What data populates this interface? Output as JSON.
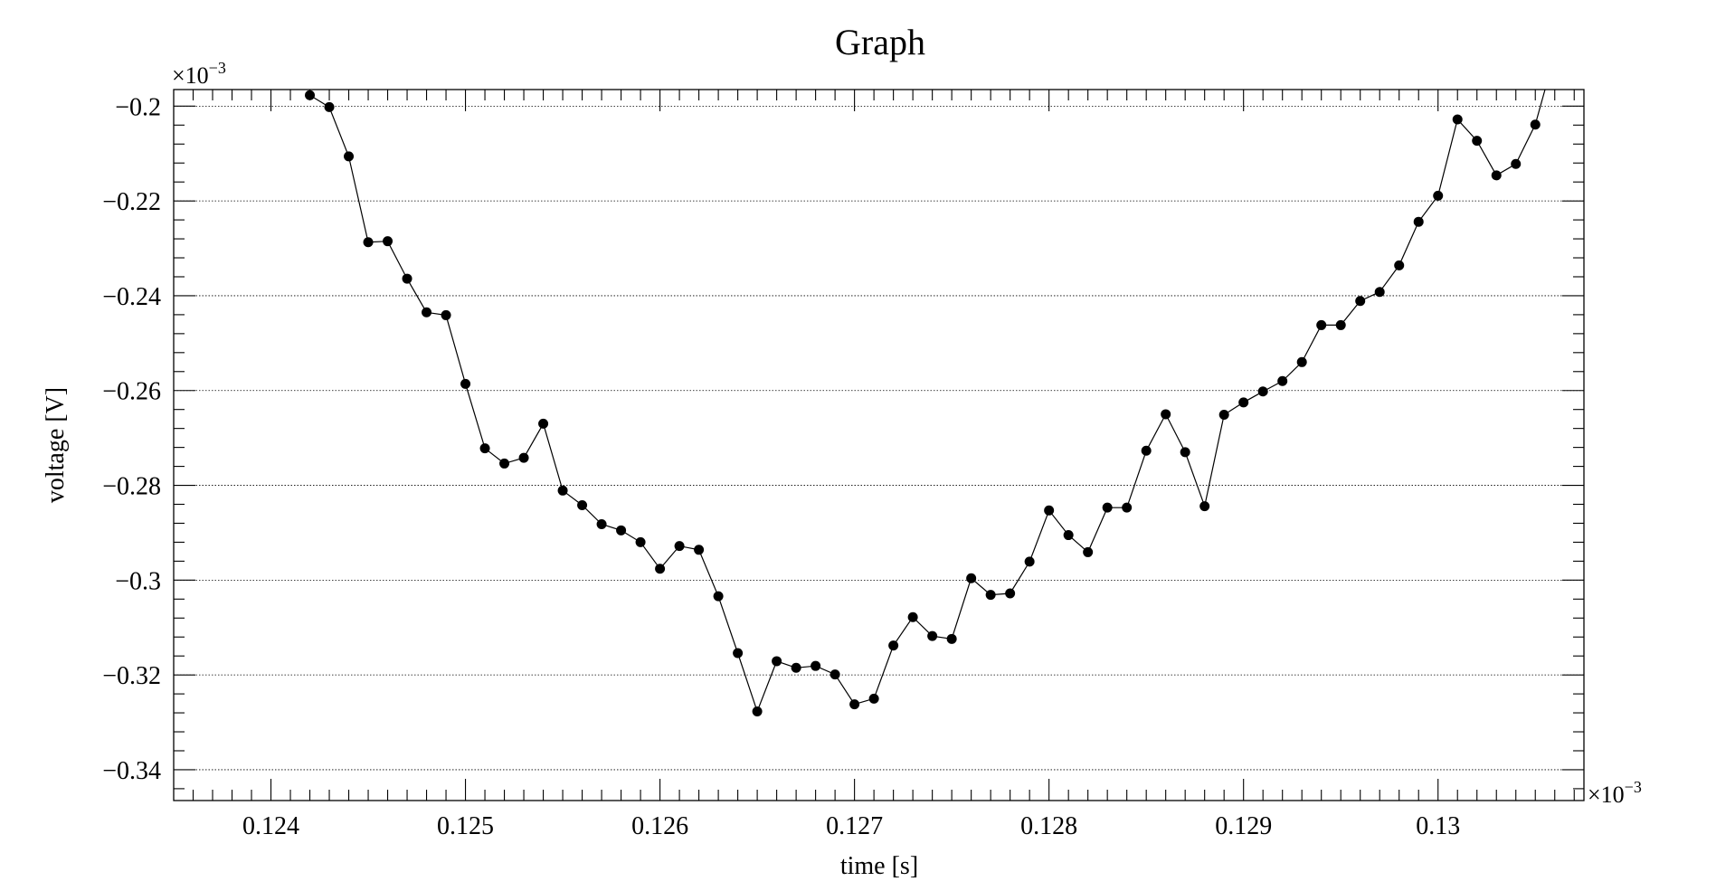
{
  "chart_data": {
    "type": "line",
    "title": "Graph",
    "xlabel": "time [s]",
    "ylabel": "voltage [V]",
    "x_multiplier": "×10",
    "y_multiplier": "×10",
    "multiplier_exponent": "−3",
    "xlim": [
      0.1235,
      0.13075
    ],
    "ylim": [
      -0.3465,
      -0.1965
    ],
    "x_ticks": [
      0.124,
      0.125,
      0.126,
      0.127,
      0.128,
      0.129,
      0.13
    ],
    "x_tick_labels": [
      "0.124",
      "0.125",
      "0.126",
      "0.127",
      "0.128",
      "0.129",
      "0.13"
    ],
    "y_ticks": [
      -0.2,
      -0.22,
      -0.24,
      -0.26,
      -0.28,
      -0.3,
      -0.32,
      -0.34
    ],
    "y_tick_labels": [
      "−0.2",
      "−0.22",
      "−0.24",
      "−0.26",
      "−0.28",
      "−0.3",
      "−0.32",
      "−0.34"
    ],
    "grid": {
      "x": false,
      "y": true
    },
    "line_color": "#000000",
    "marker_color": "#000000",
    "series": [
      {
        "x": [
          0.1242,
          0.1243,
          0.1244,
          0.1245,
          0.1246,
          0.1247,
          0.1248,
          0.1249,
          0.125,
          0.1251,
          0.1252,
          0.1253,
          0.1254,
          0.1255,
          0.1256,
          0.1257,
          0.1258,
          0.1259,
          0.126,
          0.1261,
          0.1262,
          0.1263,
          0.1264,
          0.1265,
          0.1266,
          0.1267,
          0.1268,
          0.1269,
          0.127,
          0.1271,
          0.1272,
          0.1273,
          0.1274,
          0.1275,
          0.1276,
          0.1277,
          0.1278,
          0.1279,
          0.128,
          0.1281,
          0.1282,
          0.1283,
          0.1284,
          0.1285,
          0.1286,
          0.1287,
          0.1288,
          0.1289,
          0.129,
          0.1291,
          0.1292,
          0.1293,
          0.1294,
          0.1295,
          0.1296,
          0.1297,
          0.1298,
          0.1299,
          0.13,
          0.1301,
          0.1302,
          0.1303,
          0.1304,
          0.1305
        ],
        "y": [
          -0.1977,
          -0.2002,
          -0.2106,
          -0.2287,
          -0.2285,
          -0.2364,
          -0.2435,
          -0.2441,
          -0.2586,
          -0.2722,
          -0.2754,
          -0.2742,
          -0.267,
          -0.2811,
          -0.2842,
          -0.2882,
          -0.2895,
          -0.292,
          -0.2976,
          -0.2928,
          -0.2936,
          -0.3034,
          -0.3154,
          -0.3277,
          -0.3171,
          -0.3185,
          -0.3181,
          -0.3199,
          -0.3262,
          -0.325,
          -0.3138,
          -0.3078,
          -0.3118,
          -0.3124,
          -0.2996,
          -0.3031,
          -0.3028,
          -0.2961,
          -0.2853,
          -0.2905,
          -0.2941,
          -0.2847,
          -0.2847,
          -0.2727,
          -0.265,
          -0.273,
          -0.2844,
          -0.2651,
          -0.2625,
          -0.2602,
          -0.258,
          -0.254,
          -0.2462,
          -0.2462,
          -0.2411,
          -0.2392,
          -0.2336,
          -0.2244,
          -0.2189,
          -0.2028,
          -0.2073,
          -0.2146,
          -0.2122,
          -0.2039
        ]
      }
    ],
    "line_extends_to": {
      "x": 0.13055,
      "y": -0.1965
    }
  }
}
